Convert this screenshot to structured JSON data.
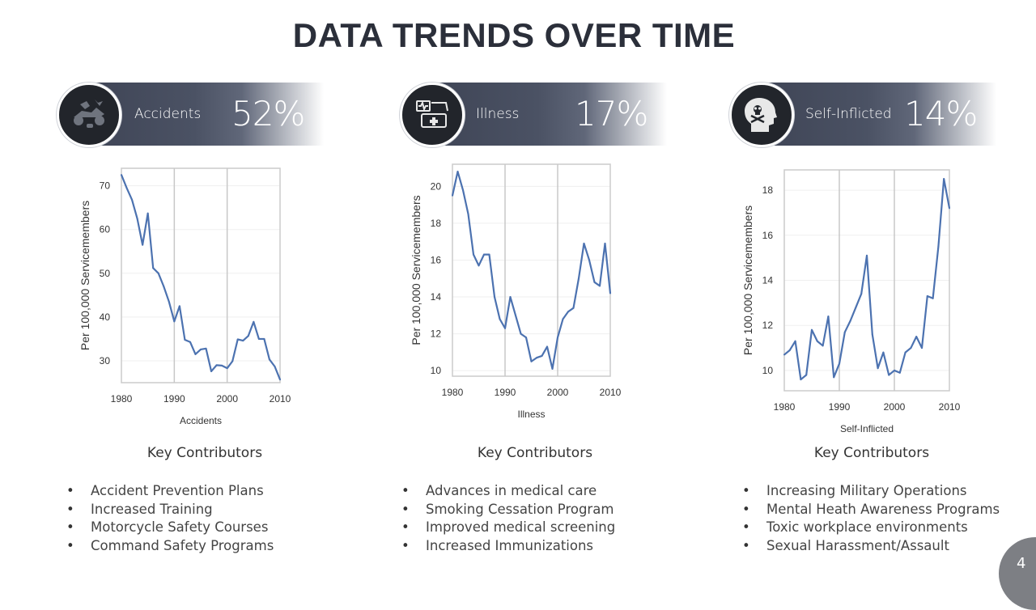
{
  "slide": {
    "title": "DATA TRENDS OVER TIME",
    "page_number": "4"
  },
  "panels": [
    {
      "label": "Accidents",
      "percent": "52%",
      "icon": "accident-icon",
      "key_title": "Key Contributors",
      "contributors": [
        "Accident Prevention Plans",
        "Increased Training",
        "Motorcycle Safety Courses",
        "Command Safety Programs"
      ]
    },
    {
      "label": "Illness",
      "percent": "17%",
      "icon": "medical-monitor-icon",
      "key_title": "Key Contributors",
      "contributors": [
        "Advances in medical care",
        "Smoking Cessation Program",
        "Improved medical screening",
        "Increased Immunizations"
      ]
    },
    {
      "label": "Self-Inflicted",
      "percent": "14%",
      "icon": "skull-head-icon",
      "key_title": "Key Contributors",
      "contributors": [
        "Increasing Military Operations",
        "Mental Heath Awareness Programs",
        "Toxic workplace environments",
        "Sexual Harassment/Assault"
      ]
    }
  ],
  "colors": {
    "line": "#4c72b0",
    "banner": "#3f4556",
    "grid": "#d0d0d0",
    "badge": "#7d7f84"
  },
  "chart_data": [
    {
      "type": "line",
      "xlabel": "Accidents",
      "ylabel": "Per 100,000 Servicemembers",
      "xlim": [
        1980,
        2010
      ],
      "ylim": [
        25,
        74
      ],
      "xticks": [
        1980,
        1990,
        2000,
        2010
      ],
      "yticks": [
        30,
        40,
        50,
        60,
        70
      ],
      "x": [
        1980,
        1981,
        1982,
        1983,
        1984,
        1985,
        1986,
        1987,
        1988,
        1989,
        1990,
        1991,
        1992,
        1993,
        1994,
        1995,
        1996,
        1997,
        1998,
        1999,
        2000,
        2001,
        2002,
        2003,
        2004,
        2005,
        2006,
        2007,
        2008,
        2009,
        2010
      ],
      "y": [
        72.5,
        69.5,
        66.8,
        62.5,
        56.5,
        63.7,
        51.2,
        50.0,
        47.0,
        43.5,
        39.0,
        42.5,
        34.8,
        34.3,
        31.5,
        32.6,
        32.8,
        27.6,
        29.0,
        28.9,
        28.3,
        29.9,
        34.9,
        34.6,
        35.7,
        38.9,
        35.0,
        35.0,
        30.3,
        28.7,
        25.7
      ],
      "vlines": [
        1990,
        2000
      ]
    },
    {
      "type": "line",
      "xlabel": "Illness",
      "ylabel": "Per 100,000 Servicemembers",
      "xlim": [
        1980,
        2010
      ],
      "ylim": [
        9.7,
        21.2
      ],
      "xticks": [
        1980,
        1990,
        2000,
        2010
      ],
      "yticks": [
        10,
        12,
        14,
        16,
        18,
        20
      ],
      "x": [
        1980,
        1981,
        1982,
        1983,
        1984,
        1985,
        1986,
        1987,
        1988,
        1989,
        1990,
        1991,
        1992,
        1993,
        1994,
        1995,
        1996,
        1997,
        1998,
        1999,
        2000,
        2001,
        2002,
        2003,
        2004,
        2005,
        2006,
        2007,
        2008,
        2009,
        2010
      ],
      "y": [
        19.5,
        20.8,
        19.8,
        18.5,
        16.3,
        15.7,
        16.3,
        16.3,
        14.0,
        12.8,
        12.3,
        14.0,
        13.0,
        12.0,
        11.8,
        10.5,
        10.7,
        10.8,
        11.3,
        10.1,
        11.8,
        12.8,
        13.2,
        13.4,
        15.0,
        16.9,
        16.0,
        14.8,
        14.6,
        16.9,
        14.2
      ],
      "vlines": [
        1990,
        2000
      ]
    },
    {
      "type": "line",
      "xlabel": "Self-Inflicted",
      "ylabel": "Per 100,000 Servicemembers",
      "xlim": [
        1980,
        2010
      ],
      "ylim": [
        9.1,
        18.9
      ],
      "xticks": [
        1980,
        1990,
        2000,
        2010
      ],
      "yticks": [
        10,
        12,
        14,
        16,
        18
      ],
      "x": [
        1980,
        1981,
        1982,
        1983,
        1984,
        1985,
        1986,
        1987,
        1988,
        1989,
        1990,
        1991,
        1992,
        1993,
        1994,
        1995,
        1996,
        1997,
        1998,
        1999,
        2000,
        2001,
        2002,
        2003,
        2004,
        2005,
        2006,
        2007,
        2008,
        2009,
        2010
      ],
      "y": [
        10.7,
        10.9,
        11.3,
        9.6,
        9.8,
        11.8,
        11.3,
        11.1,
        12.4,
        9.7,
        10.3,
        11.7,
        12.2,
        12.8,
        13.4,
        15.1,
        11.6,
        10.1,
        10.8,
        9.8,
        10.0,
        9.9,
        10.8,
        11.0,
        11.5,
        11.0,
        13.3,
        13.2,
        15.5,
        18.5,
        17.2
      ],
      "vlines": [
        1990,
        2000
      ]
    }
  ]
}
